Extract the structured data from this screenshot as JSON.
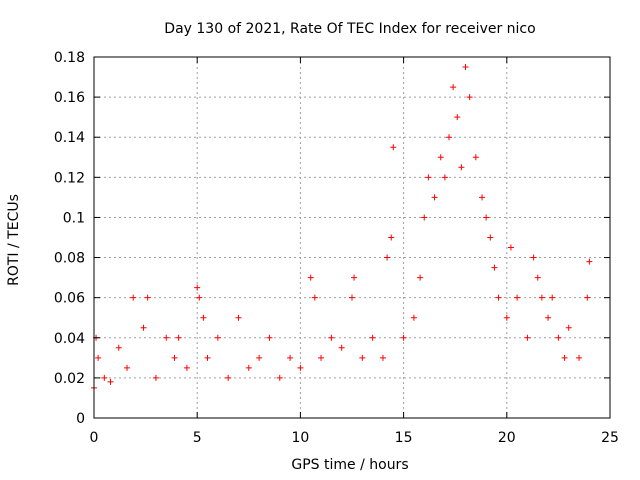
{
  "chart_data": {
    "type": "scatter",
    "title": "Day 130 of 2021, Rate Of TEC Index for receiver nico",
    "xlabel": "GPS time / hours",
    "ylabel": "ROTI / TECUs",
    "xlim": [
      0,
      25
    ],
    "ylim": [
      0,
      0.18
    ],
    "grid": true,
    "marker": "+",
    "color": "#ff0000",
    "x_ticks": [
      "0",
      "5",
      "10",
      "15",
      "20",
      "25"
    ],
    "y_ticks": [
      "0",
      "0.02",
      "0.04",
      "0.06",
      "0.08",
      "0.1",
      "0.12",
      "0.14",
      "0.16",
      "0.18"
    ],
    "x_tick_values": [
      0,
      5,
      10,
      15,
      20,
      25
    ],
    "y_tick_values": [
      0,
      0.02,
      0.04,
      0.06,
      0.08,
      0.1,
      0.12,
      0.14,
      0.16,
      0.18
    ],
    "series": [
      {
        "name": "ROTI",
        "x": [
          0.0,
          0.1,
          0.2,
          0.5,
          0.8,
          1.2,
          1.6,
          1.9,
          2.4,
          2.6,
          3.0,
          3.5,
          3.9,
          4.1,
          4.5,
          5.0,
          5.1,
          5.3,
          5.5,
          6.0,
          6.5,
          7.0,
          7.5,
          8.0,
          8.5,
          9.0,
          9.5,
          10.0,
          10.5,
          10.7,
          11.0,
          11.5,
          12.0,
          12.5,
          12.6,
          13.0,
          13.5,
          14.0,
          14.2,
          14.4,
          14.5,
          15.0,
          15.5,
          15.8,
          16.0,
          16.2,
          16.5,
          16.8,
          17.0,
          17.2,
          17.4,
          17.6,
          17.8,
          18.0,
          18.2,
          18.5,
          18.8,
          19.0,
          19.2,
          19.4,
          19.6,
          20.0,
          20.2,
          20.5,
          21.0,
          21.3,
          21.5,
          21.7,
          22.0,
          22.2,
          22.5,
          22.8,
          23.0,
          23.5,
          23.9,
          24.0
        ],
        "y": [
          0.015,
          0.04,
          0.03,
          0.02,
          0.018,
          0.035,
          0.025,
          0.06,
          0.045,
          0.06,
          0.02,
          0.04,
          0.03,
          0.04,
          0.025,
          0.065,
          0.06,
          0.05,
          0.03,
          0.04,
          0.02,
          0.05,
          0.025,
          0.03,
          0.04,
          0.02,
          0.03,
          0.025,
          0.07,
          0.06,
          0.03,
          0.04,
          0.035,
          0.06,
          0.07,
          0.03,
          0.04,
          0.03,
          0.08,
          0.09,
          0.135,
          0.04,
          0.05,
          0.07,
          0.1,
          0.12,
          0.11,
          0.13,
          0.12,
          0.14,
          0.165,
          0.15,
          0.125,
          0.175,
          0.16,
          0.13,
          0.11,
          0.1,
          0.09,
          0.075,
          0.06,
          0.05,
          0.085,
          0.06,
          0.04,
          0.08,
          0.07,
          0.06,
          0.05,
          0.06,
          0.04,
          0.03,
          0.045,
          0.03,
          0.06,
          0.078
        ]
      }
    ]
  }
}
